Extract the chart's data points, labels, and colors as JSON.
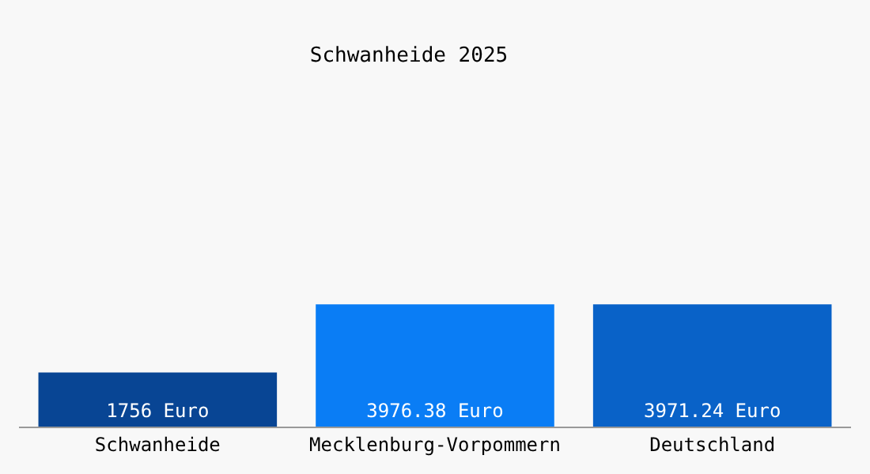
{
  "chart_data": {
    "type": "bar",
    "title": "Schwanheide 2025",
    "categories": [
      "Schwanheide",
      "Mecklenburg-Vorpommern",
      "Deutschland"
    ],
    "values": [
      1756,
      3976.38,
      3971.24
    ],
    "colors": [
      "#084594",
      "#0a7df5",
      "#0962c8"
    ],
    "value_labels": [
      "1756 Euro",
      "3976.38 Euro",
      "3971.24 Euro"
    ],
    "grid": false,
    "legend": false
  }
}
